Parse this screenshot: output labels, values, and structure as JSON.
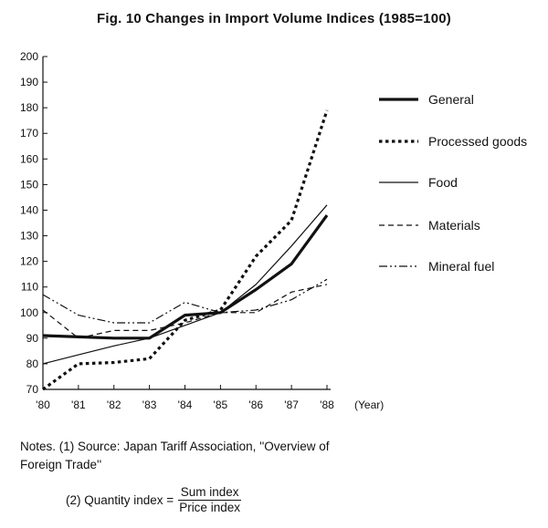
{
  "chart_data": {
    "type": "line",
    "title": "Fig. 10 Changes in Import Volume Indices (1985=100)",
    "x_unit": "(Year)",
    "categories": [
      "'80",
      "'81",
      "'82",
      "'83",
      "'84",
      "'85",
      "'86",
      "'87",
      "'88"
    ],
    "ylim": [
      70,
      200
    ],
    "yticks": [
      70,
      80,
      90,
      100,
      110,
      120,
      130,
      140,
      150,
      160,
      170,
      180,
      190,
      200
    ],
    "grid": false,
    "legend_position": "right",
    "series": [
      {
        "name": "General",
        "style": "thick-solid",
        "values": [
          91,
          90.5,
          90,
          90,
          99,
          100,
          109,
          119,
          138
        ]
      },
      {
        "name": "Processed goods",
        "style": "thick-dotted",
        "values": [
          70,
          80,
          80.5,
          82,
          97,
          101,
          122,
          136,
          179
        ]
      },
      {
        "name": "Food",
        "style": "thin-solid",
        "values": [
          80,
          83.5,
          87,
          90,
          95,
          100,
          111,
          126,
          142
        ]
      },
      {
        "name": "Materials",
        "style": "thin-dashed",
        "values": [
          101,
          90,
          93,
          93,
          96,
          100,
          100,
          108,
          111
        ]
      },
      {
        "name": "Mineral fuel",
        "style": "dash-dot",
        "values": [
          107,
          99,
          96,
          96,
          104,
          100,
          101,
          105,
          113
        ]
      }
    ]
  },
  "notes": {
    "line1": "Notes. (1) Source: Japan Tariff Association, ''Overview of",
    "line2": "Foreign Trade''",
    "note2_prefix": "(2) Quantity index =",
    "note2_numerator": "Sum index",
    "note2_denominator": "Price index"
  }
}
